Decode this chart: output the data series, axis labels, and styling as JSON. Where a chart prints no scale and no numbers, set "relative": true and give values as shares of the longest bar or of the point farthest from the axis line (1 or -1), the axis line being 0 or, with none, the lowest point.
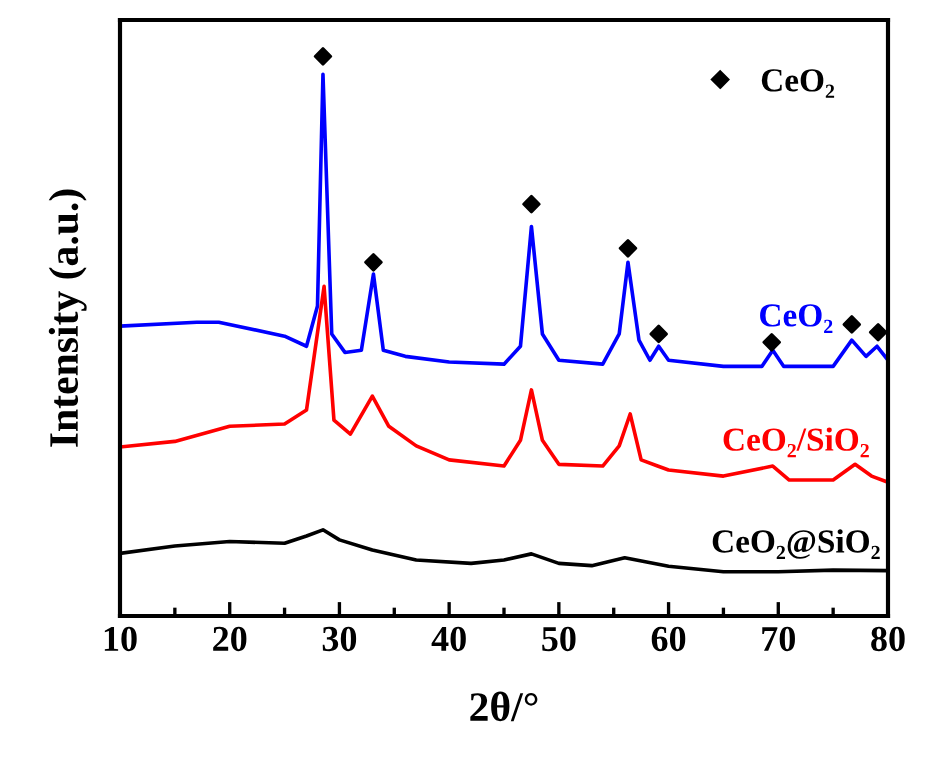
{
  "chart_data": {
    "type": "line",
    "relative": true,
    "xlabel": "2θ/°",
    "ylabel": "Intensity (a.u.)",
    "xlim": [
      10,
      80
    ],
    "xticks": [
      10,
      {
        "value": 15,
        "label": null
      },
      20,
      {
        "value": 25,
        "label": null
      },
      30,
      {
        "value": 35,
        "label": null
      },
      40,
      {
        "value": 45,
        "label": null
      },
      50,
      {
        "value": 55,
        "label": null
      },
      60,
      {
        "value": 65,
        "label": null
      },
      70,
      {
        "value": 75,
        "label": null
      },
      80
    ],
    "tick_labels": "x",
    "legend": "top right",
    "grid": false,
    "series": [
      {
        "name": "CeO₂",
        "color": "#0000ff",
        "x": [
          10,
          17,
          19,
          25,
          27,
          28,
          28.5,
          29.3,
          30.5,
          32,
          33.1,
          34,
          36,
          40,
          45,
          46.5,
          47.5,
          48.5,
          50,
          54,
          55.5,
          56.3,
          57.3,
          58.3,
          59.1,
          60,
          65,
          68.5,
          69.5,
          70.5,
          75,
          76.7,
          78,
          79,
          80
        ],
        "values": [
          0.518,
          0.525,
          0.525,
          0.5,
          0.482,
          0.554,
          0.968,
          0.504,
          0.471,
          0.475,
          0.611,
          0.475,
          0.464,
          0.454,
          0.45,
          0.482,
          0.696,
          0.504,
          0.457,
          0.45,
          0.504,
          0.632,
          0.493,
          0.457,
          0.482,
          0.457,
          0.446,
          0.446,
          0.475,
          0.446,
          0.446,
          0.493,
          0.464,
          0.482,
          0.457
        ]
      },
      {
        "name": "CeO₂/SiO₂",
        "color": "#ff0000",
        "x": [
          10,
          15,
          20,
          25,
          27,
          28.6,
          29.5,
          31,
          33,
          34.5,
          37,
          40,
          45,
          46.5,
          47.5,
          48.5,
          50,
          54,
          55.5,
          56.5,
          57.5,
          59,
          60,
          65,
          69.5,
          71,
          75,
          77,
          78.5,
          80
        ],
        "values": [
          0.302,
          0.312,
          0.339,
          0.343,
          0.368,
          0.589,
          0.35,
          0.325,
          0.393,
          0.339,
          0.304,
          0.279,
          0.268,
          0.314,
          0.404,
          0.314,
          0.271,
          0.268,
          0.304,
          0.361,
          0.279,
          0.268,
          0.261,
          0.25,
          0.268,
          0.243,
          0.243,
          0.271,
          0.25,
          0.239
        ]
      },
      {
        "name": "CeO₂@SiO₂",
        "color": "#000000",
        "x": [
          10,
          15,
          20,
          25,
          27,
          28.5,
          30,
          33,
          37,
          42,
          45,
          47.5,
          50,
          53,
          56,
          60,
          65,
          70,
          75,
          80
        ],
        "values": [
          0.112,
          0.125,
          0.133,
          0.13,
          0.143,
          0.154,
          0.136,
          0.118,
          0.1,
          0.094,
          0.1,
          0.111,
          0.094,
          0.09,
          0.104,
          0.089,
          0.079,
          0.079,
          0.082,
          0.081
        ]
      },
      {
        "name": "CeO₂",
        "type": "scatter",
        "marker": "diamond",
        "color": "#000000",
        "x": [
          28.5,
          33.1,
          47.5,
          56.3,
          59.1,
          69.4,
          76.7,
          79.1
        ],
        "values": [
          1.0,
          0.632,
          0.736,
          0.657,
          0.504,
          0.489,
          0.521,
          0.507
        ]
      }
    ]
  }
}
